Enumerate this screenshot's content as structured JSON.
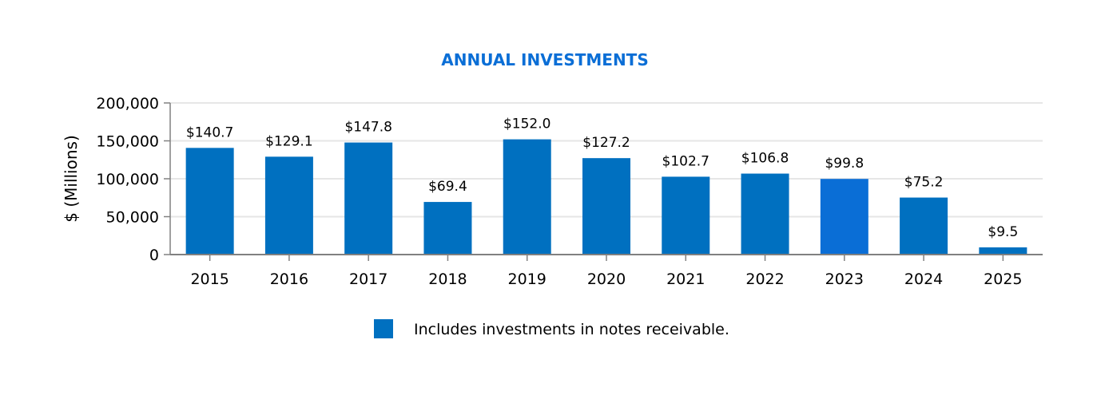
{
  "chart_data": {
    "type": "bar",
    "title": "ANNUAL INVESTMENTS",
    "xlabel": "",
    "ylabel": "$ (Millions)",
    "ylim": [
      0,
      200000
    ],
    "yticks": [
      "0",
      "50,000",
      "100,000",
      "150,000",
      "200,000"
    ],
    "ytick_values": [
      0,
      50000,
      100000,
      150000,
      200000
    ],
    "grid": true,
    "categories": [
      "2015",
      "2016",
      "2017",
      "2018",
      "2019",
      "2020",
      "2021",
      "2022",
      "2023",
      "2024",
      "2025"
    ],
    "values": [
      140700,
      129100,
      147800,
      69400,
      152000,
      127200,
      102700,
      106800,
      99800,
      75200,
      9500
    ],
    "data_labels": [
      "$140.7",
      "$129.1",
      "$147.8",
      "$69.4",
      "$152.0",
      "$127.2",
      "$102.7",
      "$106.8",
      "$99.8",
      "$75.2",
      "$9.5"
    ],
    "legend": {
      "position": "bottom",
      "entries": [
        "Includes investments in notes receivable."
      ]
    },
    "colors": {
      "bar": "#0070C0",
      "highlight_bar": "#0A6ED6",
      "title": "#0A6ED6",
      "grid": "#E6E6E6",
      "axis": "#808080"
    }
  }
}
